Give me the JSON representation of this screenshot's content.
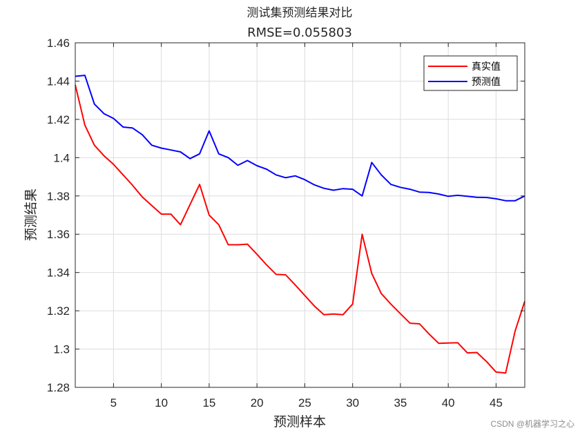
{
  "chart_data": {
    "type": "line",
    "title": "测试集预测结果对比",
    "subtitle": "RMSE=0.055803",
    "xlabel": "预测样本",
    "ylabel": "预测结果",
    "xlim": [
      1,
      48
    ],
    "ylim": [
      1.28,
      1.46
    ],
    "xticks": [
      5,
      10,
      15,
      20,
      25,
      30,
      35,
      40,
      45
    ],
    "yticks": [
      1.28,
      1.3,
      1.32,
      1.34,
      1.36,
      1.38,
      1.4,
      1.42,
      1.44,
      1.46
    ],
    "ytick_labels": [
      "1.28",
      "1.3",
      "1.32",
      "1.34",
      "1.36",
      "1.38",
      "1.4",
      "1.42",
      "1.44",
      "1.46"
    ],
    "grid": true,
    "legend_position": "top-right",
    "x": [
      1,
      2,
      3,
      4,
      5,
      6,
      7,
      8,
      9,
      10,
      11,
      12,
      13,
      14,
      15,
      16,
      17,
      18,
      19,
      20,
      21,
      22,
      23,
      24,
      25,
      26,
      27,
      28,
      29,
      30,
      31,
      32,
      33,
      34,
      35,
      36,
      37,
      38,
      39,
      40,
      41,
      42,
      43,
      44,
      45,
      46,
      47,
      48
    ],
    "series": [
      {
        "name": "真实值",
        "color": "#ff0000",
        "values": [
          1.438,
          1.417,
          1.4065,
          1.401,
          1.3965,
          1.391,
          1.3855,
          1.3795,
          1.375,
          1.3705,
          1.3705,
          1.365,
          1.3755,
          1.386,
          1.37,
          1.365,
          1.3545,
          1.3545,
          1.3548,
          1.3495,
          1.344,
          1.339,
          1.3388,
          1.3335,
          1.328,
          1.3225,
          1.318,
          1.3183,
          1.318,
          1.3235,
          1.36,
          1.3395,
          1.329,
          1.3235,
          1.3185,
          1.3135,
          1.3132,
          1.3078,
          1.303,
          1.3032,
          1.3033,
          1.298,
          1.2982,
          1.2935,
          1.288,
          1.2875,
          1.3095,
          1.325
        ]
      },
      {
        "name": "预测值",
        "color": "#0000ff",
        "values": [
          1.4425,
          1.443,
          1.428,
          1.423,
          1.4205,
          1.416,
          1.4155,
          1.412,
          1.4065,
          1.405,
          1.404,
          1.403,
          1.3995,
          1.402,
          1.414,
          1.402,
          1.4,
          1.396,
          1.3985,
          1.3958,
          1.394,
          1.391,
          1.3895,
          1.3905,
          1.3885,
          1.3858,
          1.384,
          1.383,
          1.3838,
          1.3835,
          1.38,
          1.3975,
          1.391,
          1.386,
          1.3845,
          1.3835,
          1.382,
          1.3818,
          1.381,
          1.3798,
          1.3803,
          1.3798,
          1.3793,
          1.3792,
          1.3785,
          1.3775,
          1.3775,
          1.38
        ]
      }
    ]
  },
  "watermark": "CSDN @机器学习之心"
}
